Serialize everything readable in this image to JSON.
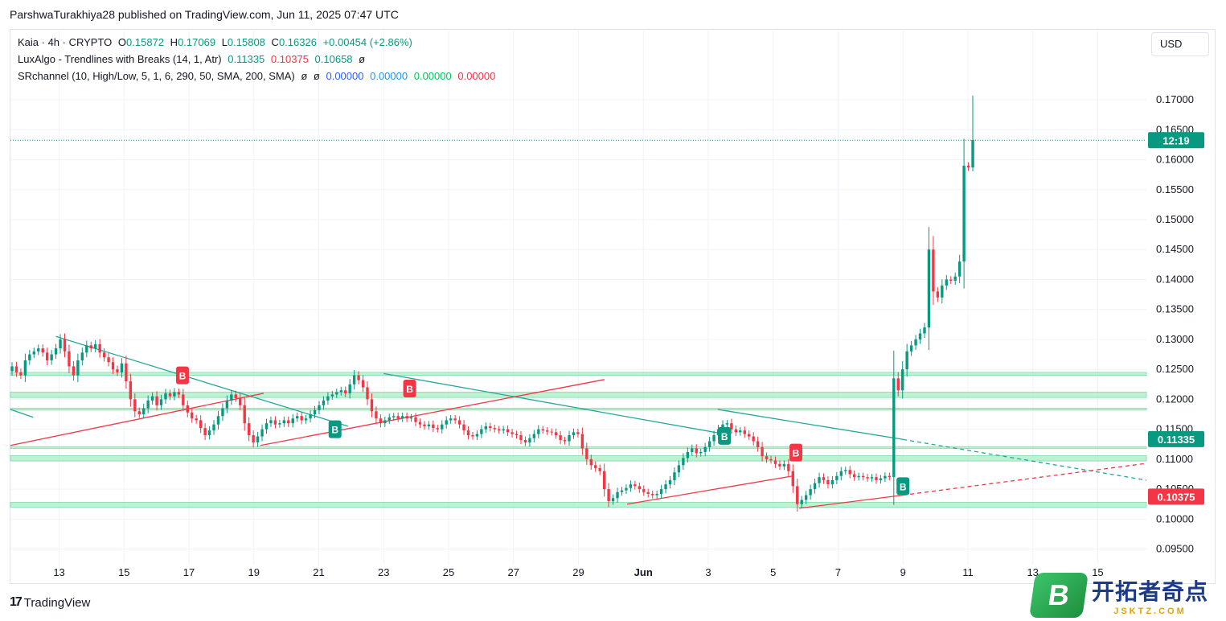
{
  "header": {
    "published": "ParshwaTurakhiya28 published on TradingView.com, Jun 11, 2025 07:47 UTC"
  },
  "legend": {
    "line1": {
      "symbol": "Kaia · 4h · CRYPTO",
      "o_label": "O",
      "o": "0.15872",
      "h_label": "H",
      "h": "0.17069",
      "l_label": "L",
      "l": "0.15808",
      "c_label": "C",
      "c": "0.16326",
      "change": "+0.00454 (+2.86%)"
    },
    "line2": {
      "name": "LuxAlgo - Trendlines with Breaks (14, 1, Atr)",
      "v1": "0.11335",
      "v2": "0.10375",
      "v3": "0.10658",
      "v4": "ø"
    },
    "line3": {
      "name": "SRchannel (10, High/Low, 5, 1, 6, 290, 50, SMA, 200, SMA)",
      "n1": "ø",
      "n2": "ø",
      "v1": "0.00000",
      "v2": "0.00000",
      "v3": "0.00000",
      "v4": "0.00000"
    }
  },
  "currency": "USD",
  "branding": {
    "tradingview": "TradingView",
    "watermark_cn": "开拓者奇点",
    "watermark_en": "JSKTZ.COM",
    "watermark_letter": "B"
  },
  "colors": {
    "up": "#089981",
    "down": "#f23645",
    "channel": "#b2f0cc",
    "grid": "#f0f3fa",
    "trend_down": "#26a69a",
    "trend_up": "#f23645"
  },
  "chart_data": {
    "type": "candlestick",
    "symbol": "Kaia",
    "timeframe": "4h",
    "ylim": [
      0.094,
      0.1735
    ],
    "y_ticks": [
      "0.17000",
      "0.16500",
      "0.16000",
      "0.15500",
      "0.15000",
      "0.14500",
      "0.14000",
      "0.13500",
      "0.13000",
      "0.12500",
      "0.12000",
      "0.11500",
      "0.11000",
      "0.10500",
      "0.10000",
      "0.09500"
    ],
    "x_ticks": [
      "13",
      "15",
      "17",
      "19",
      "21",
      "23",
      "25",
      "27",
      "29",
      "Jun",
      "3",
      "5",
      "7",
      "9",
      "11",
      "13",
      "15"
    ],
    "x_tick_days": [
      13,
      15,
      17,
      19,
      21,
      23,
      25,
      27,
      29,
      31,
      33,
      35,
      37,
      39,
      41,
      43,
      45
    ],
    "x_range_days": [
      11.5,
      46.5
    ],
    "last_price": 0.16326,
    "countdown": "12:19",
    "price_labels": [
      {
        "text": "0.11335",
        "value": 0.11335,
        "color": "#089981"
      },
      {
        "text": "0.10375",
        "value": 0.10375,
        "color": "#f23645"
      }
    ],
    "sr_zones": [
      {
        "from": 0.124,
        "to": 0.1245
      },
      {
        "from": 0.1203,
        "to": 0.1212
      },
      {
        "from": 0.1182,
        "to": 0.1185
      },
      {
        "from": 0.1118,
        "to": 0.1121
      },
      {
        "from": 0.1097,
        "to": 0.1106
      },
      {
        "from": 0.102,
        "to": 0.1028
      }
    ],
    "trendlines": [
      {
        "kind": "resistance",
        "x1": 11.5,
        "y1": 0.1183,
        "x2": 12.2,
        "y2": 0.117,
        "dashed": false
      },
      {
        "kind": "resistance",
        "x1": 12.9,
        "y1": 0.1305,
        "x2": 21.9,
        "y2": 0.1155,
        "dashed": false
      },
      {
        "kind": "resistance",
        "x1": 23.0,
        "y1": 0.1243,
        "x2": 33.3,
        "y2": 0.1144,
        "dashed": false
      },
      {
        "kind": "resistance",
        "x1": 33.3,
        "y1": 0.1183,
        "x2": 39.0,
        "y2": 0.1133,
        "dashed": false
      },
      {
        "kind": "resistance",
        "x1": 39.0,
        "y1": 0.1133,
        "x2": 46.5,
        "y2": 0.1065,
        "dashed": true
      },
      {
        "kind": "support",
        "x1": 11.5,
        "y1": 0.1123,
        "x2": 19.3,
        "y2": 0.121,
        "dashed": false
      },
      {
        "kind": "support",
        "x1": 19.2,
        "y1": 0.1123,
        "x2": 29.8,
        "y2": 0.1233,
        "dashed": false
      },
      {
        "kind": "support",
        "x1": 30.5,
        "y1": 0.1025,
        "x2": 35.6,
        "y2": 0.1072,
        "dashed": false
      },
      {
        "kind": "support",
        "x1": 35.8,
        "y1": 0.1018,
        "x2": 39.0,
        "y2": 0.104,
        "dashed": false
      },
      {
        "kind": "support",
        "x1": 39.0,
        "y1": 0.104,
        "x2": 46.5,
        "y2": 0.1093,
        "dashed": true
      }
    ],
    "break_labels": [
      {
        "day": 16.8,
        "price": 0.124,
        "text": "B",
        "kind": "bear"
      },
      {
        "day": 21.5,
        "price": 0.115,
        "text": "B",
        "kind": "bull"
      },
      {
        "day": 23.8,
        "price": 0.1218,
        "text": "B",
        "kind": "bear"
      },
      {
        "day": 33.5,
        "price": 0.1139,
        "text": "B",
        "kind": "bull"
      },
      {
        "day": 35.7,
        "price": 0.1111,
        "text": "B",
        "kind": "bear"
      },
      {
        "day": 39.0,
        "price": 0.1055,
        "text": "B",
        "kind": "bull"
      }
    ],
    "closes": [
      0.1255,
      0.1245,
      0.124,
      0.1265,
      0.1275,
      0.128,
      0.1285,
      0.1278,
      0.1265,
      0.1275,
      0.1285,
      0.13,
      0.128,
      0.1255,
      0.124,
      0.1265,
      0.1278,
      0.129,
      0.1285,
      0.1292,
      0.1278,
      0.127,
      0.1262,
      0.125,
      0.1245,
      0.126,
      0.123,
      0.12,
      0.118,
      0.1175,
      0.1185,
      0.1198,
      0.1205,
      0.119,
      0.12,
      0.121,
      0.1205,
      0.1212,
      0.1208,
      0.119,
      0.1178,
      0.1168,
      0.1165,
      0.1152,
      0.114,
      0.1148,
      0.1158,
      0.1172,
      0.1185,
      0.1198,
      0.1208,
      0.1202,
      0.119,
      0.116,
      0.114,
      0.1128,
      0.1138,
      0.115,
      0.116,
      0.1165,
      0.1158,
      0.116,
      0.1165,
      0.116,
      0.1168,
      0.1172,
      0.1165,
      0.1168,
      0.1175,
      0.1182,
      0.119,
      0.1198,
      0.1205,
      0.1208,
      0.1212,
      0.1215,
      0.121,
      0.1225,
      0.124,
      0.1232,
      0.122,
      0.12,
      0.118,
      0.1168,
      0.116,
      0.1165,
      0.117,
      0.1172,
      0.1168,
      0.1172,
      0.1168,
      0.117,
      0.1162,
      0.1158,
      0.1155,
      0.1158,
      0.1152,
      0.115,
      0.1158,
      0.1165,
      0.1168,
      0.1165,
      0.1158,
      0.1148,
      0.114,
      0.1138,
      0.1142,
      0.115,
      0.1155,
      0.1152,
      0.115,
      0.1148,
      0.115,
      0.1145,
      0.1142,
      0.114,
      0.1132,
      0.1128,
      0.1135,
      0.1142,
      0.115,
      0.1148,
      0.1146,
      0.1145,
      0.114,
      0.1132,
      0.113,
      0.114,
      0.1145,
      0.1142,
      0.1118,
      0.11,
      0.109,
      0.1085,
      0.108,
      0.105,
      0.103,
      0.1035,
      0.1045,
      0.1048,
      0.1052,
      0.1058,
      0.1055,
      0.105,
      0.1045,
      0.1042,
      0.104,
      0.1042,
      0.105,
      0.1058,
      0.1065,
      0.1078,
      0.109,
      0.1102,
      0.1112,
      0.1118,
      0.111,
      0.1112,
      0.112,
      0.113,
      0.114,
      0.115,
      0.1158,
      0.116,
      0.115,
      0.1145,
      0.1148,
      0.1142,
      0.1138,
      0.113,
      0.112,
      0.1105,
      0.11,
      0.1098,
      0.1092,
      0.1088,
      0.1092,
      0.108,
      0.1055,
      0.1025,
      0.1032,
      0.104,
      0.105,
      0.106,
      0.107,
      0.1065,
      0.1058,
      0.1065,
      0.1072,
      0.108,
      0.1082,
      0.1075,
      0.107,
      0.1072,
      0.107,
      0.1068,
      0.107,
      0.1065,
      0.1068,
      0.1072,
      0.107,
      0.1235,
      0.1215,
      0.125,
      0.128,
      0.129,
      0.13,
      0.131,
      0.132,
      0.145,
      0.138,
      0.137,
      0.139,
      0.14,
      0.1398,
      0.1405,
      0.143,
      0.159,
      0.1587,
      0.1633
    ]
  }
}
